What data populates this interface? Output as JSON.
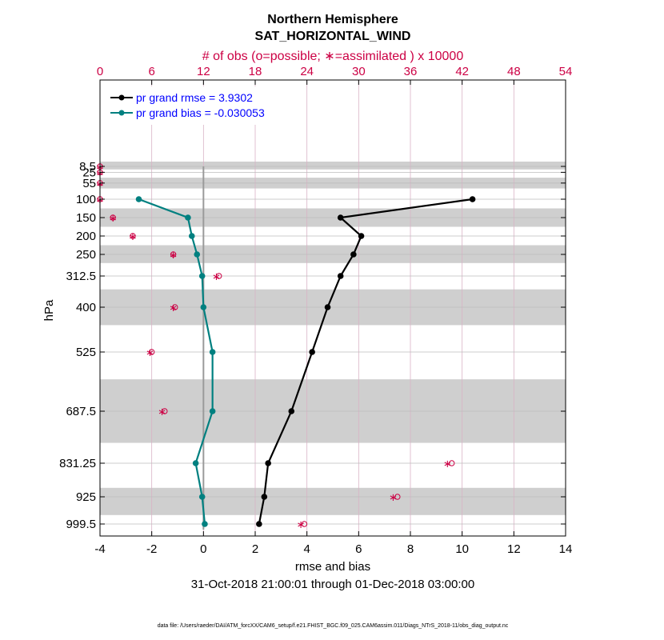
{
  "chart_data": {
    "type": "line",
    "title": "Northern Hemisphere",
    "subtitle": "SAT_HORIZONTAL_WIND",
    "top_axis_label": "# of obs (o=possible; ∗=assimilated ) x 10000",
    "top_axis_ticks": [
      "0",
      "6",
      "12",
      "18",
      "24",
      "30",
      "36",
      "42",
      "48",
      "54"
    ],
    "top_axis_range": [
      0,
      54
    ],
    "xlabel": "rmse and bias",
    "x_ticks": [
      "-4",
      "-2",
      "0",
      "2",
      "4",
      "6",
      "8",
      "10",
      "12",
      "14"
    ],
    "xlim": [
      -4,
      14
    ],
    "ylabel": "hPa",
    "y_ticks": [
      "8.5",
      "25",
      "55",
      "100",
      "150",
      "200",
      "250",
      "312.5",
      "400",
      "525",
      "687.5",
      "831.25",
      "925",
      "999.5"
    ],
    "levels": [
      8.5,
      25,
      55,
      100,
      150,
      200,
      250,
      312.5,
      400,
      525,
      687.5,
      831.25,
      925,
      999.5
    ],
    "shaded_bands": [
      [
        0,
        17
      ],
      [
        40,
        70
      ],
      [
        125,
        175
      ],
      [
        225,
        275
      ],
      [
        350,
        450
      ],
      [
        600,
        775
      ],
      [
        900,
        975
      ]
    ],
    "series": [
      {
        "name": "pr grand rmse = 3.9302",
        "color": "#000000",
        "levels": [
          100,
          150,
          200,
          250,
          312.5,
          400,
          525,
          687.5,
          831.25,
          925,
          999.5
        ],
        "values": [
          10.4,
          5.3,
          6.1,
          5.8,
          5.3,
          4.8,
          4.2,
          3.4,
          2.5,
          2.35,
          2.15
        ]
      },
      {
        "name": "pr grand bias = -0.030053",
        "color": "#008080",
        "levels": [
          100,
          150,
          200,
          250,
          312.5,
          400,
          525,
          687.5,
          831.25,
          925,
          999.5
        ],
        "values": [
          -2.5,
          -0.6,
          -0.45,
          -0.25,
          -0.05,
          0.0,
          0.35,
          0.35,
          -0.3,
          -0.05,
          0.05
        ]
      }
    ],
    "obs_count": {
      "levels": [
        8.5,
        25,
        55,
        100,
        150,
        200,
        250,
        312.5,
        400,
        525,
        687.5,
        831.25,
        925,
        999.5
      ],
      "possible": [
        0,
        0,
        0,
        0,
        1.5,
        3.8,
        8.5,
        13.8,
        8.7,
        6.0,
        7.5,
        40.8,
        34.5,
        23.7
      ],
      "assimilated": [
        0,
        0,
        0,
        0,
        1.5,
        3.8,
        8.5,
        13.5,
        8.5,
        5.8,
        7.2,
        40.3,
        34.0,
        23.3
      ]
    },
    "date_range": "31-Oct-2018 21:00:01 through 01-Dec-2018 03:00:00",
    "footer": "data file: /Users/raeder/DAI/ATM_forcXX/CAM6_setup/f.e21.FHIST_BGC.f09_025.CAM6assim.011/Diags_NTrS_2018-11/obs_diag_output.nc"
  }
}
